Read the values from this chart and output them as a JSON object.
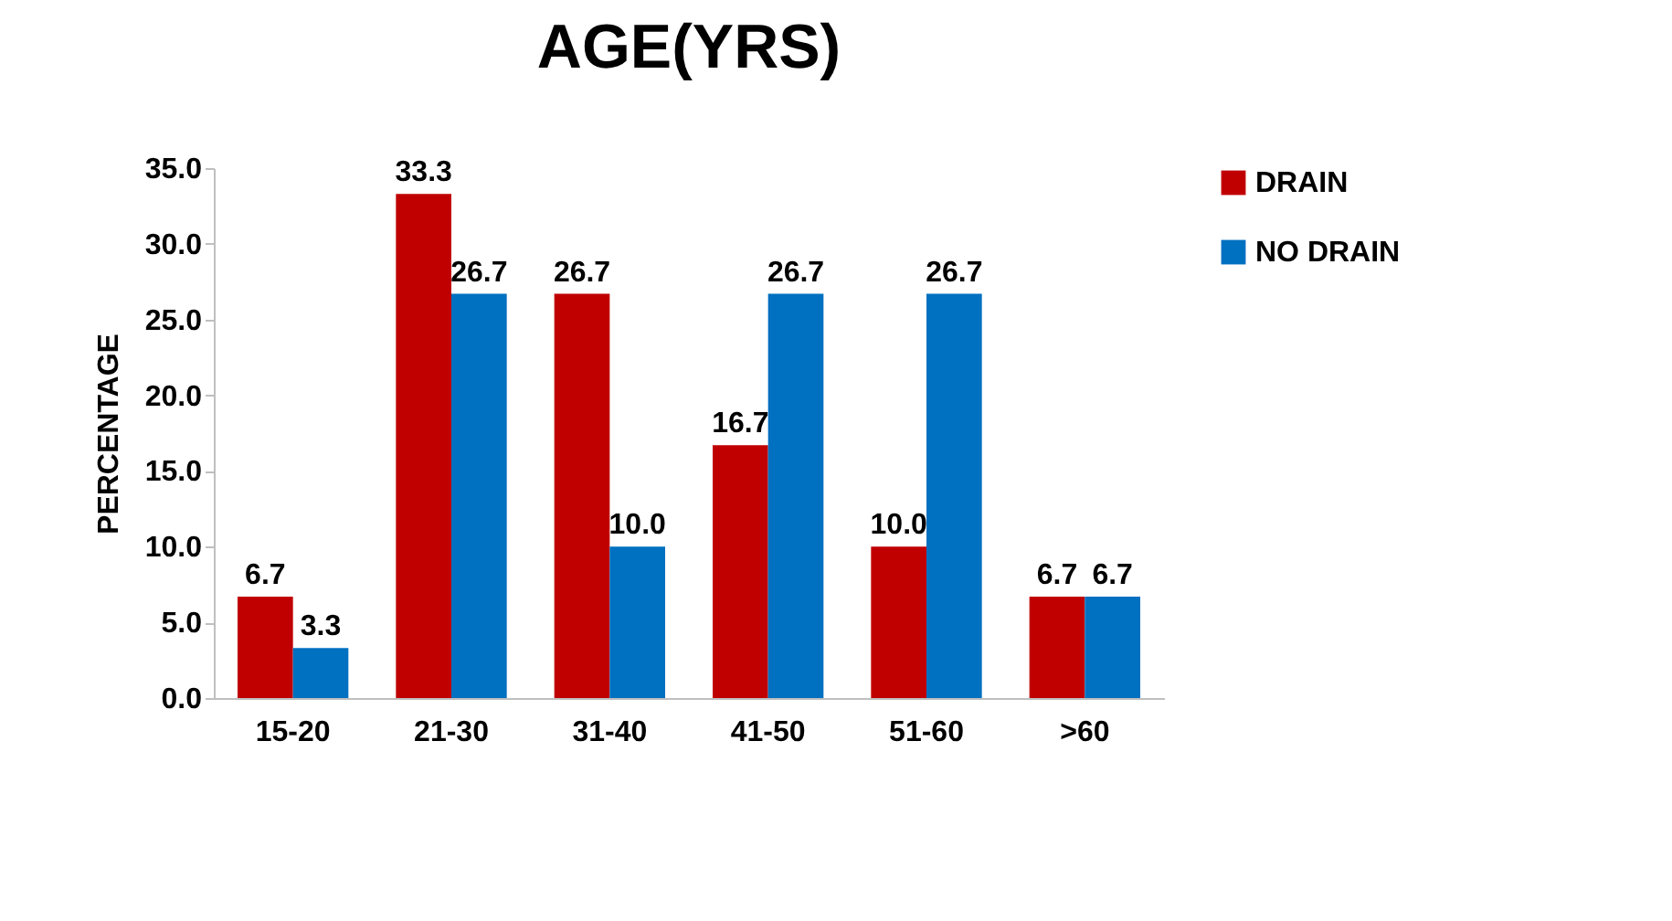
{
  "chart_data": {
    "type": "bar",
    "title": "AGE(YRS)",
    "ylabel": "PERCENTAGE",
    "categories": [
      "15-20",
      "21-30",
      "31-40",
      "41-50",
      "51-60",
      ">60"
    ],
    "series": [
      {
        "name": "DRAIN",
        "color": "#c00000",
        "values": [
          6.7,
          33.3,
          26.7,
          16.7,
          10.0,
          6.7
        ],
        "value_labels": [
          "6.7",
          "33.3",
          "26.7",
          "16.7",
          "10.0",
          "6.7"
        ]
      },
      {
        "name": "NO DRAIN",
        "color": "#0070c0",
        "values": [
          3.3,
          26.7,
          10.0,
          26.7,
          26.7,
          6.7
        ],
        "value_labels": [
          "3.3",
          "26.7",
          "10.0",
          "26.7",
          "26.7",
          "6.7"
        ]
      }
    ],
    "ylim": [
      0,
      35
    ],
    "yticks": [
      {
        "value": 0,
        "label": "0.0"
      },
      {
        "value": 5,
        "label": "5.0"
      },
      {
        "value": 10,
        "label": "10.0"
      },
      {
        "value": 15,
        "label": "15.0"
      },
      {
        "value": 20,
        "label": "20.0"
      },
      {
        "value": 25,
        "label": "25.0"
      },
      {
        "value": 30,
        "label": "30.0"
      },
      {
        "value": 35,
        "label": "35.0"
      }
    ],
    "grid": false,
    "legend": "right"
  }
}
